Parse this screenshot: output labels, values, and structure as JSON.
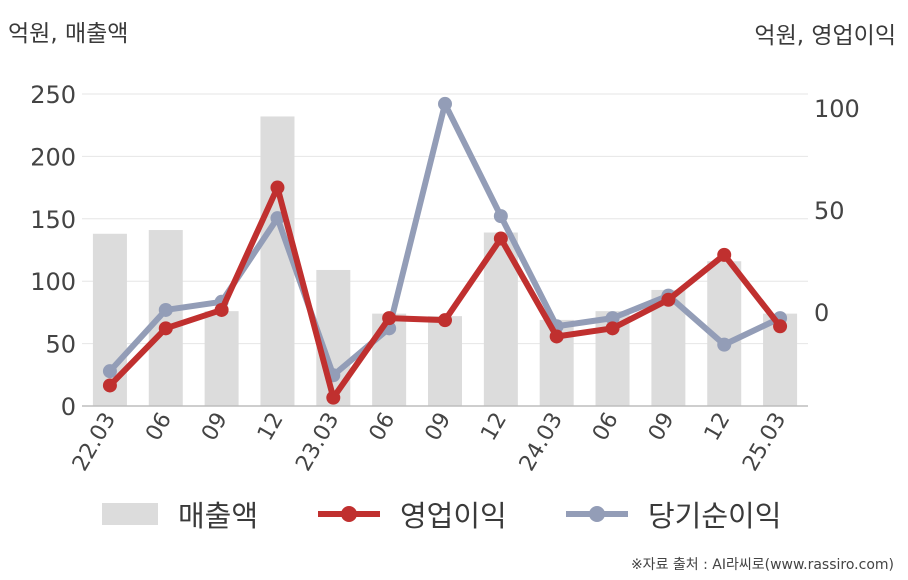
{
  "chart_data": {
    "type": "bar-line-combo",
    "left_axis_title": "억원, 매출액",
    "right_axis_title": "억원, 영업이익",
    "categories": [
      "22.03",
      "06",
      "09",
      "12",
      "23.03",
      "06",
      "09",
      "12",
      "24.03",
      "06",
      "09",
      "12",
      "25.03"
    ],
    "left_axis": {
      "min": 0,
      "max": 250,
      "ticks": [
        0,
        50,
        100,
        150,
        200,
        250
      ]
    },
    "right_axis": {
      "min": -48,
      "max": 106,
      "ticks": [
        0,
        50,
        100
      ]
    },
    "grid": true,
    "series": [
      {
        "name": "매출액",
        "type": "bar",
        "axis": "left",
        "color": "#dcdcdc",
        "values": [
          138,
          141,
          76,
          232,
          109,
          74,
          72,
          139,
          69,
          76,
          93,
          116,
          74
        ]
      },
      {
        "name": "영업이익",
        "type": "line",
        "axis": "right",
        "color": "#c0302f",
        "values": [
          -36,
          -8,
          1,
          61,
          -42,
          -3,
          -4,
          36,
          -12,
          -8,
          6,
          28,
          -7
        ]
      },
      {
        "name": "당기순이익",
        "type": "line",
        "axis": "right",
        "color": "#939db7",
        "values": [
          -29,
          1,
          5,
          46,
          -31,
          -8,
          102,
          47,
          -7,
          -3,
          8,
          -16,
          -3
        ]
      }
    ],
    "legend_position": "bottom"
  },
  "source": "※자료 출처 : AI라씨로(www.rassiro.com)"
}
